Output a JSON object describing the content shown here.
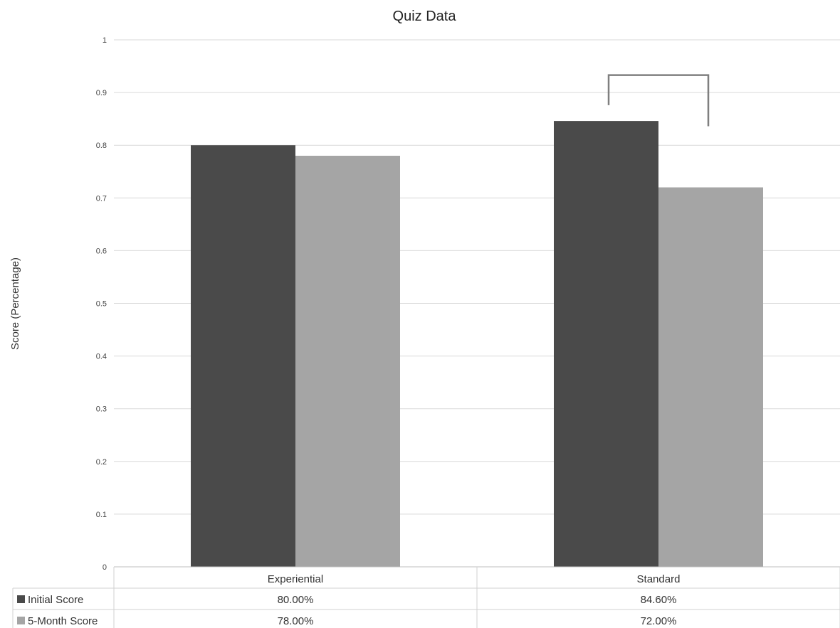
{
  "chart_data": {
    "type": "bar",
    "title": "Quiz Data",
    "xlabel": "",
    "ylabel": "Score (Percentage)",
    "ylim": [
      0,
      1
    ],
    "yticks": [
      "0",
      "0.1",
      "0.2",
      "0.3",
      "0.4",
      "0.5",
      "0.6",
      "0.7",
      "0.8",
      "0.9",
      "1"
    ],
    "grid": true,
    "legend": "data-table",
    "categories": [
      "Experiential",
      "Standard"
    ],
    "series": [
      {
        "name": "Initial Score",
        "color": "#4a4a4a",
        "values": [
          0.8,
          0.846
        ],
        "labels": [
          "80.00%",
          "84.60%"
        ]
      },
      {
        "name": "5-Month Score",
        "color": "#a5a5a5",
        "values": [
          0.78,
          0.72
        ],
        "labels": [
          "78.00%",
          "72.00%"
        ]
      }
    ],
    "annotations": [
      {
        "type": "significance-bracket",
        "category": "Standard",
        "from_value": 0.876,
        "to_value": 0.836,
        "top_value": 0.933
      }
    ]
  }
}
